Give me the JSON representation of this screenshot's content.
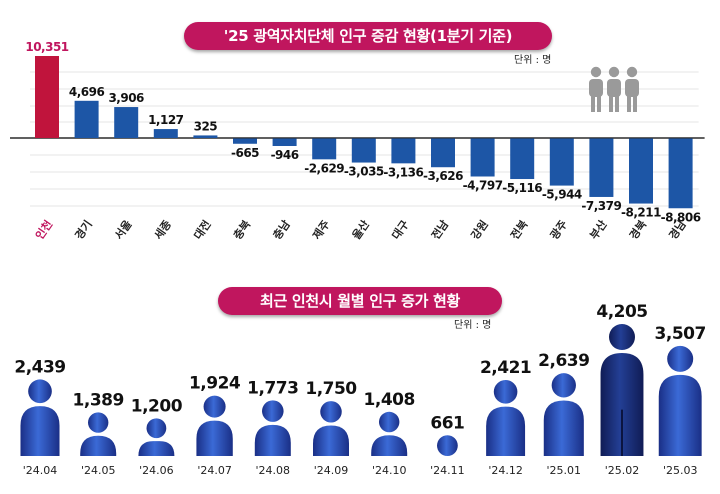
{
  "chart_data": [
    {
      "type": "bar",
      "title": "'25 광역자치단체 인구 증감 현황(1분기 기준)",
      "unit_label": "단위 : 명",
      "categories": [
        "인천",
        "경기",
        "서울",
        "세종",
        "대전",
        "충북",
        "충남",
        "제주",
        "울산",
        "대구",
        "전남",
        "강원",
        "전북",
        "광주",
        "부산",
        "경북",
        "경남"
      ],
      "values": [
        10351,
        4696,
        3906,
        1127,
        325,
        -665,
        -946,
        -2629,
        -3035,
        -3136,
        -3626,
        -4797,
        -5116,
        -5944,
        -7379,
        -8211,
        -8806
      ],
      "value_labels": [
        "10,351",
        "4,696",
        "3,906",
        "1,127",
        "325",
        "-665",
        "-946",
        "-2,629",
        "-3,035",
        "-3,136",
        "-3,626",
        "-4,797",
        "-5,116",
        "-5,944",
        "-7,379",
        "-8,211",
        "-8,806"
      ],
      "highlight_category": "인천",
      "colors": {
        "highlight": "#c0143c",
        "bar": "#1d56a6",
        "highlight_label": "#c0165e"
      }
    },
    {
      "type": "bar",
      "title": "최근 인천시 월별 인구 증가 현황",
      "unit_label": "단위 : 명",
      "categories": [
        "'24.04",
        "'24.05",
        "'24.06",
        "'24.07",
        "'24.08",
        "'24.09",
        "'24.10",
        "'24.11",
        "'24.12",
        "'25.01",
        "'25.02",
        "'25.03"
      ],
      "values": [
        2439,
        1389,
        1200,
        1924,
        1773,
        1750,
        1408,
        661,
        2421,
        2639,
        4205,
        3507
      ],
      "value_labels": [
        "2,439",
        "1,389",
        "1,200",
        "1,924",
        "1,773",
        "1,750",
        "1,408",
        "661",
        "2,421",
        "2,639",
        "4,205",
        "3,507"
      ],
      "colors": {
        "figure_light": "#2f5fc6",
        "figure_dark": "#1a2f7a"
      }
    }
  ],
  "icons": {
    "people_group": "people-group-icon",
    "person_figure": "person-figure-icon"
  }
}
